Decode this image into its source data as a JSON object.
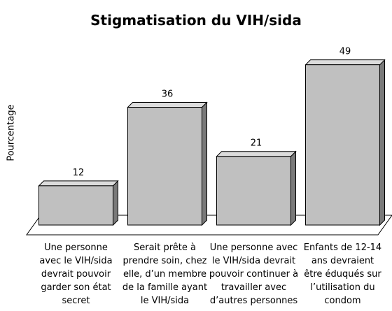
{
  "chart_data": {
    "type": "bar3d",
    "title": "Stigmatisation du VIH/sida",
    "y_label": "Pourcentage",
    "categories": [
      [
        "Une personne",
        "avec le VIH/sida",
        "devrait pouvoir",
        "garder son état",
        "secret"
      ],
      [
        "Serait prête à",
        "prendre soin, chez",
        "elle, d’un membre",
        "de la famille ayant",
        "le VIH/sida"
      ],
      [
        "Une personne avec",
        "le VIH/sida devrait",
        "pouvoir continuer à",
        "travailler avec",
        "d’autres personnes"
      ],
      [
        "Enfants de 12-14",
        "ans devraient",
        "être éduqués sur",
        "l’utilisation du",
        "condom"
      ]
    ],
    "values": [
      12,
      36,
      21,
      49
    ],
    "color": "#c0c0c0",
    "ylim": [
      0,
      50
    ]
  }
}
